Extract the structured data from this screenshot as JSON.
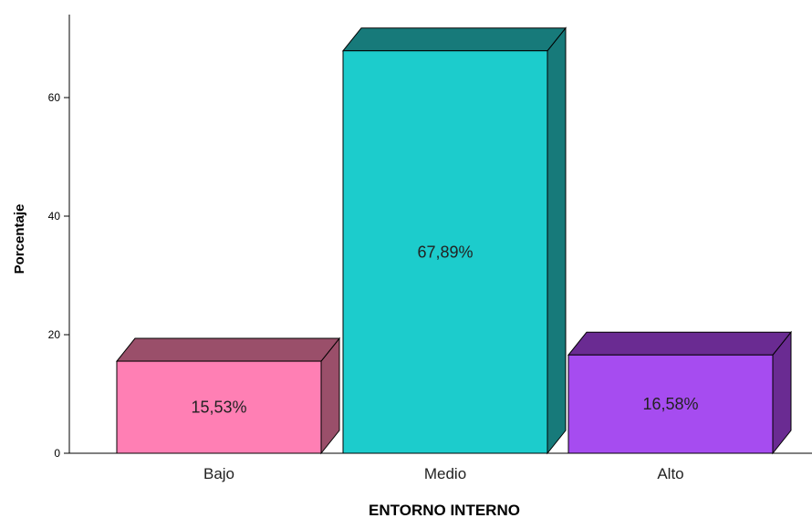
{
  "chart_data": {
    "type": "bar",
    "title": "",
    "xlabel": "ENTORNO INTERNO",
    "ylabel": "Porcentaje",
    "ylim": [
      0,
      74
    ],
    "yticks": [
      0,
      20,
      40,
      60
    ],
    "grid": false,
    "legend": "none",
    "categories": [
      "Bajo",
      "Medio",
      "Alto"
    ],
    "values": [
      15.53,
      67.89,
      16.58
    ],
    "data_labels": [
      "15,53%",
      "67,89%",
      "16,58%"
    ],
    "colors": [
      {
        "front": "#ff7fb4",
        "top": "#9a4f6a",
        "side": "#9a4f6a"
      },
      {
        "front": "#1ccccc",
        "top": "#177a7a",
        "side": "#177a7a"
      },
      {
        "front": "#a64cf0",
        "top": "#6a2b92",
        "side": "#6a2b92"
      }
    ]
  }
}
